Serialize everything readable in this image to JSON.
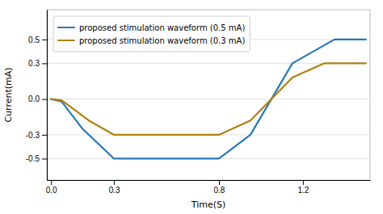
{
  "chart_data": {
    "type": "line",
    "xlabel": "Time(S)",
    "ylabel": "Current(mA)",
    "series": [
      {
        "name": "proposed stimulation waveform (0.5 mA)",
        "color": "#2878b5",
        "x": [
          0.0,
          0.05,
          0.15,
          0.3,
          0.8,
          0.95,
          1.15,
          1.35,
          1.5
        ],
        "values": [
          0.0,
          -0.02,
          -0.25,
          -0.5,
          -0.5,
          -0.3,
          0.3,
          0.5,
          0.5
        ]
      },
      {
        "name": "proposed stimulation waveform (0.3 mA)",
        "color": "#b08010",
        "x": [
          0.0,
          0.05,
          0.18,
          0.3,
          0.8,
          0.95,
          1.15,
          1.3,
          1.5
        ],
        "values": [
          0.0,
          -0.01,
          -0.18,
          -0.3,
          -0.3,
          -0.18,
          0.18,
          0.3,
          0.3
        ]
      }
    ],
    "xlim": [
      -0.02,
      1.52
    ],
    "ylim": [
      -0.68,
      0.75
    ],
    "xticks": [
      {
        "value": 0.0,
        "label": "0.0"
      },
      0.3,
      0.8,
      1.2
    ],
    "yticks": [
      -0.5,
      -0.3,
      {
        "value": 0.0,
        "label": "0.0"
      },
      0.3,
      0.5
    ],
    "grid": true,
    "legend": "upper left"
  }
}
